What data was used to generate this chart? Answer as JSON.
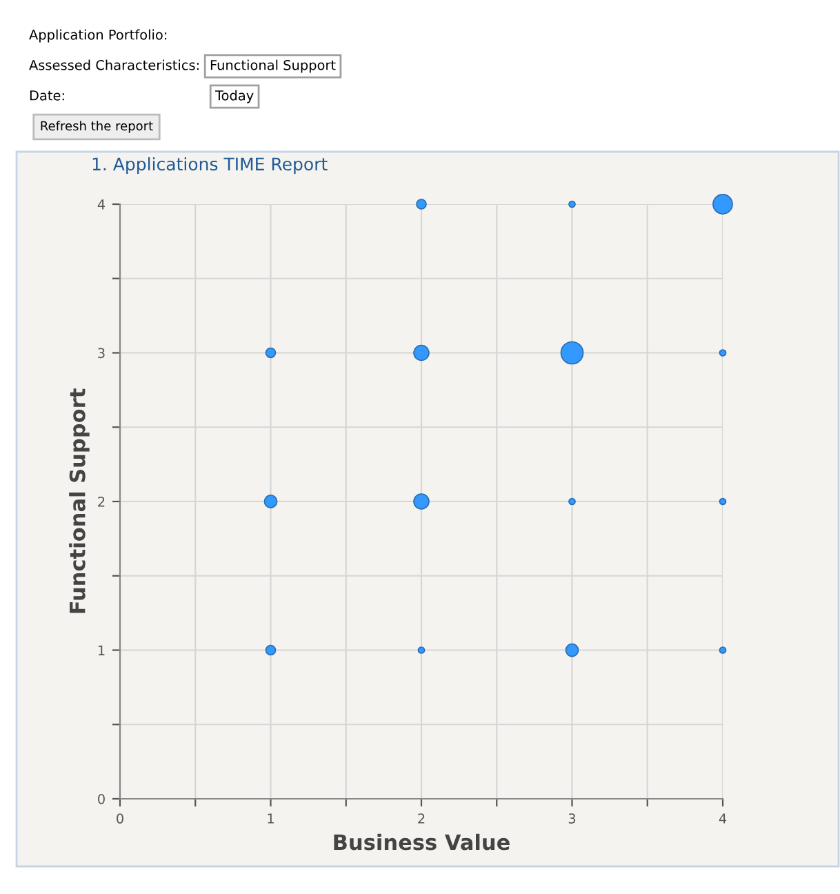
{
  "chart_data": {
    "type": "bubble",
    "title": "1. Applications TIME Report",
    "xlabel": "Business Value",
    "ylabel": "Functional Support",
    "x": [
      1,
      1,
      1,
      2,
      2,
      2,
      2,
      3,
      3,
      3,
      3,
      4,
      4,
      4,
      4
    ],
    "values": [
      1,
      2,
      3,
      1,
      2,
      3,
      4,
      1,
      2,
      3,
      4,
      1,
      2,
      3,
      4
    ],
    "sizes": [
      0.19,
      0.32,
      0.19,
      0.08,
      0.47,
      0.47,
      0.19,
      0.32,
      0.08,
      1,
      0.08,
      0.08,
      0.08,
      0.08,
      0.77
    ],
    "color": "#3399ff",
    "xlim": [
      0,
      4
    ],
    "ylim": [
      0,
      4
    ],
    "xticks": [
      0,
      {
        "value": 0.5,
        "label": null
      },
      1,
      {
        "value": 1.5,
        "label": null
      },
      2,
      {
        "value": 2.5,
        "label": null
      },
      3,
      {
        "value": 3.5,
        "label": null
      },
      4
    ],
    "yticks": [
      0,
      {
        "value": 0.5,
        "label": null
      },
      1,
      {
        "value": 1.5,
        "label": null
      },
      2,
      {
        "value": 2.5,
        "label": null
      },
      3,
      {
        "value": 3.5,
        "label": null
      },
      4
    ],
    "grid": true,
    "annotations": [
      "Application Portfolio:",
      "Assessed Characteristics:",
      "Functional Support",
      "Date:",
      "Today",
      "Refresh the report"
    ]
  }
}
